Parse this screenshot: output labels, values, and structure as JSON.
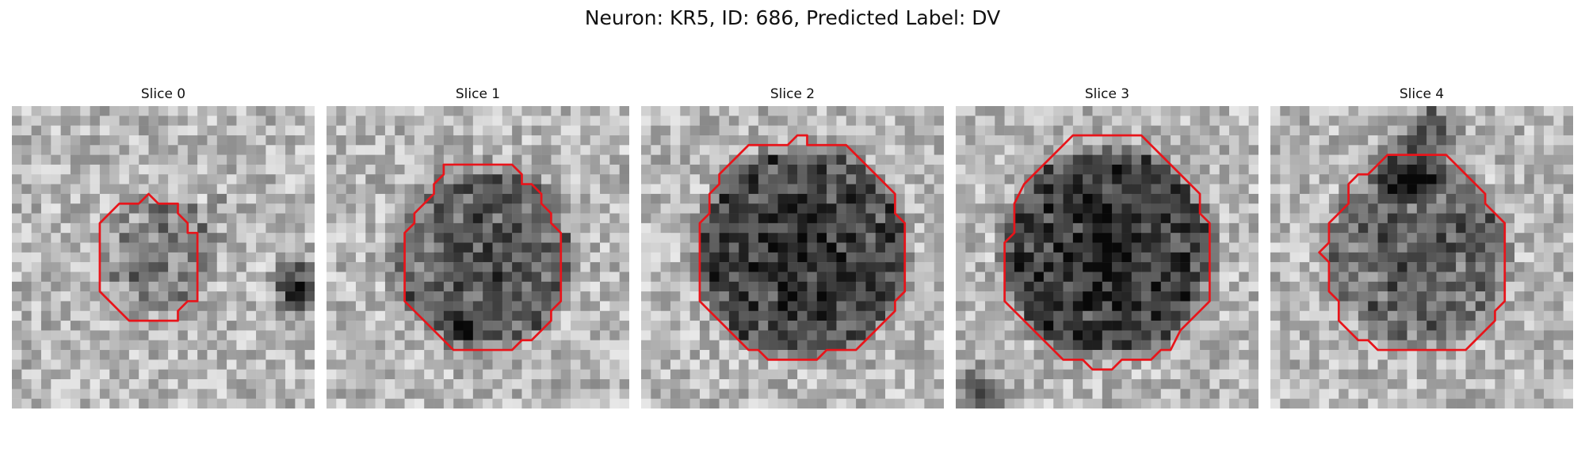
{
  "figure": {
    "title": "Neuron: KR5, ID: 686, Predicted Label: DV"
  },
  "panels": [
    {
      "title": "Slice 0"
    },
    {
      "title": "Slice 1"
    },
    {
      "title": "Slice 2"
    },
    {
      "title": "Slice 3"
    },
    {
      "title": "Slice 4"
    }
  ],
  "style": {
    "contour_color": "#e8141a",
    "colormap": "grayscale"
  }
}
